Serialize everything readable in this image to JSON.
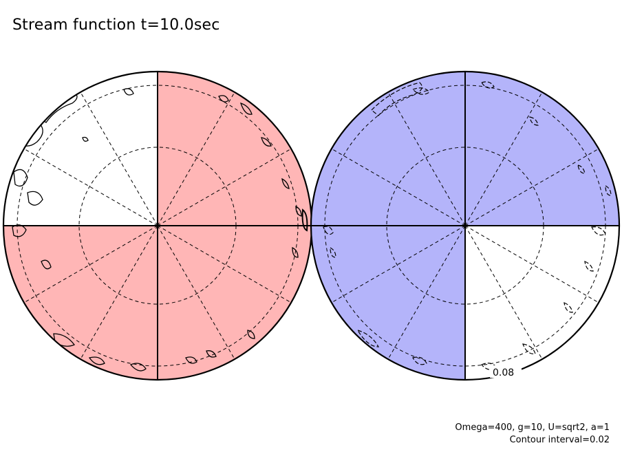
{
  "title": "Stream function t=10.0sec",
  "params_line": "Omega=400, g=10, U=sqrt2, a=1",
  "contour_line": "Contour interval=0.02",
  "contour_label": "0.08",
  "colors": {
    "positive_fill": "#ffb6b6",
    "negative_fill": "#b4b4fa",
    "line": "#000000"
  },
  "hemispheres": [
    {
      "name": "left",
      "fill_color": "#ffb6b6",
      "filled_quadrants": [
        "upper-right",
        "lower-left",
        "lower-right"
      ]
    },
    {
      "name": "right",
      "fill_color": "#b4b4fa",
      "filled_quadrants": [
        "upper-left",
        "upper-right",
        "lower-left"
      ]
    }
  ]
}
